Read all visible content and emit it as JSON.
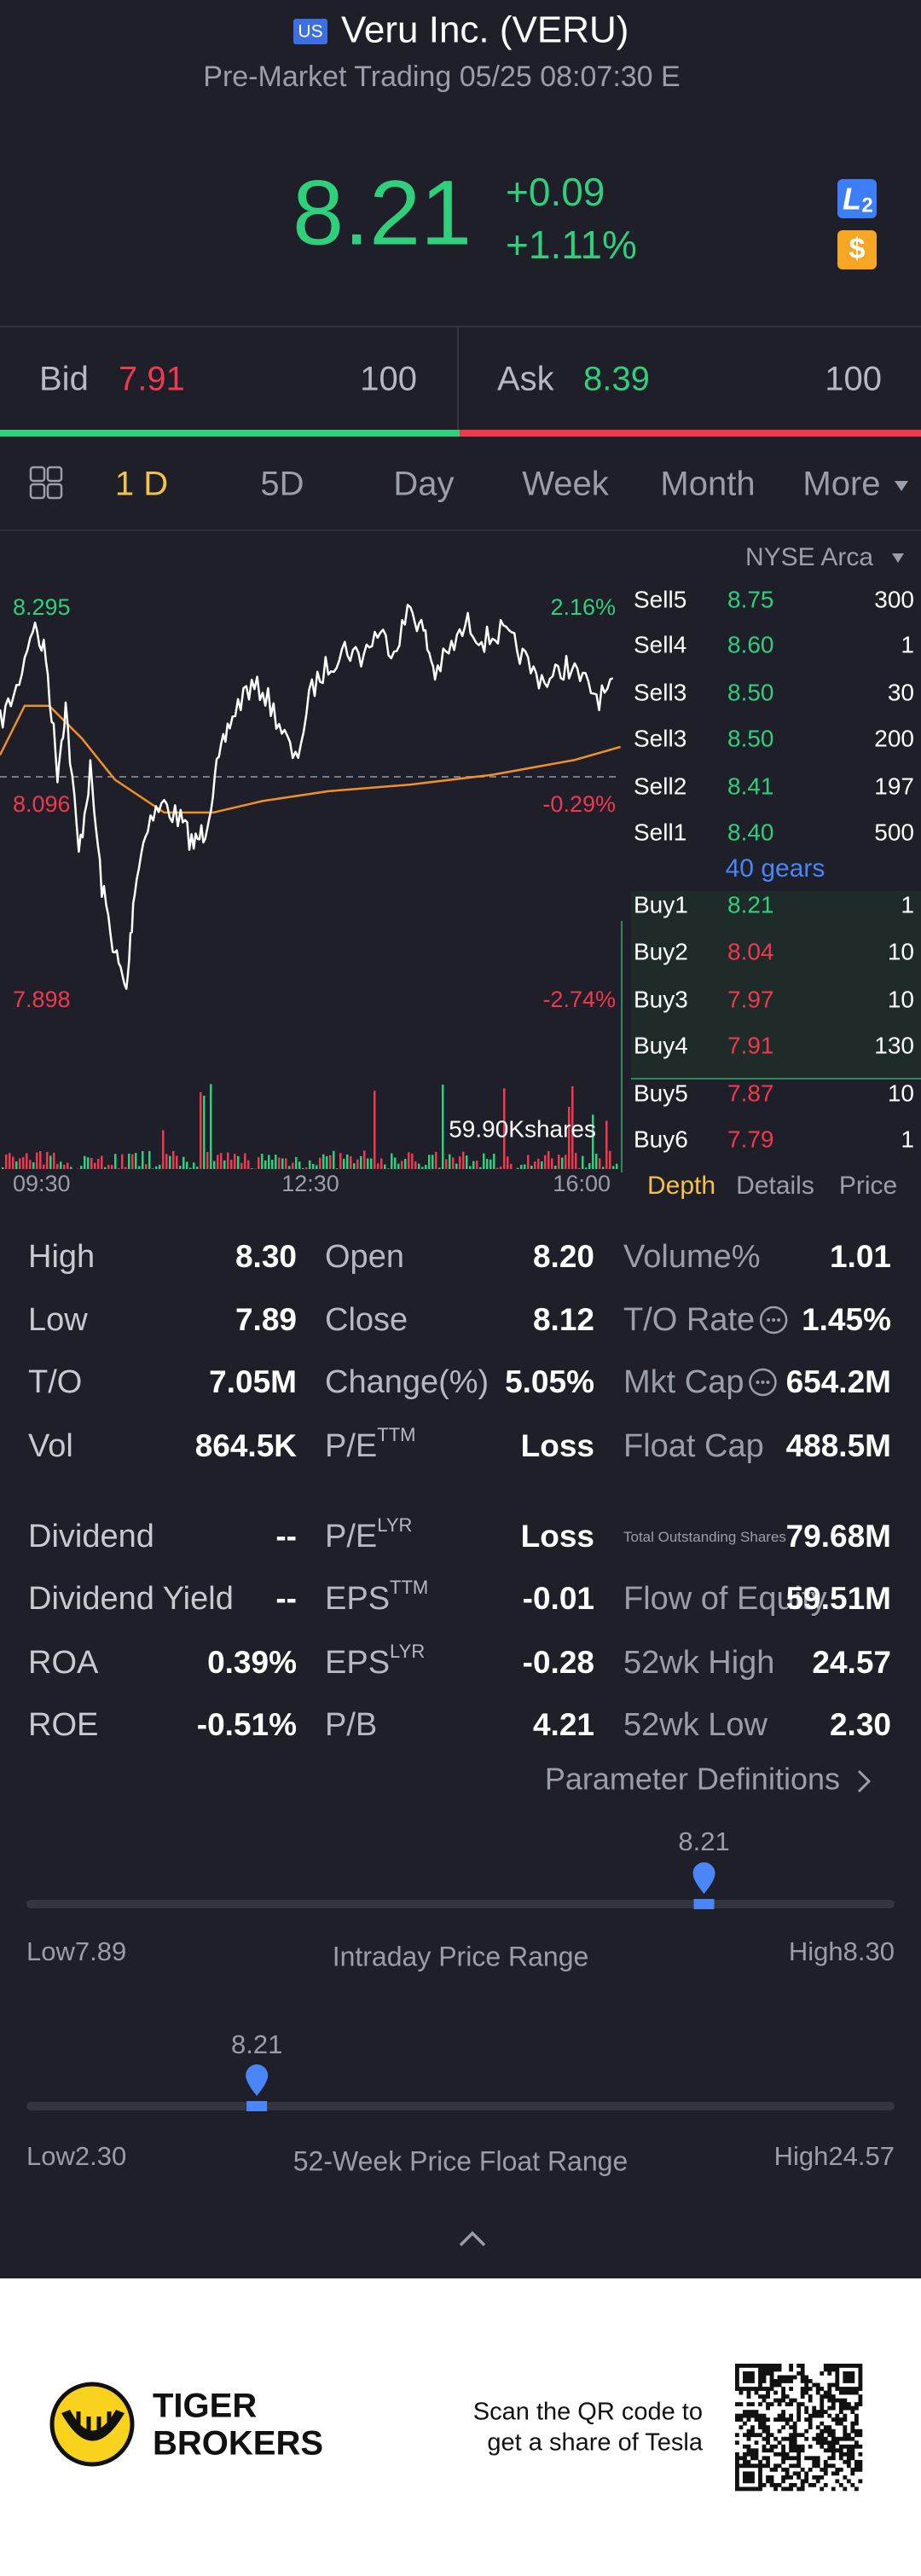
{
  "header": {
    "badge": "US",
    "title": "Veru Inc. (VERU)",
    "subtitle": "Pre-Market Trading 05/25 08:07:30 E"
  },
  "quote": {
    "price": "8.21",
    "change": "+0.09",
    "change_pct": "+1.11%",
    "level2_icon": {
      "letter": "L",
      "sub": "2"
    },
    "currency_icon": "$"
  },
  "bid_ask": {
    "bid": {
      "label": "Bid",
      "price": "7.91",
      "size": "100"
    },
    "ask": {
      "label": "Ask",
      "price": "8.39",
      "size": "100"
    }
  },
  "tabs": [
    "1 D",
    "5D",
    "Day",
    "Week",
    "Month",
    "More"
  ],
  "chart": {
    "left_labels": [
      "8.295",
      "8.096",
      "7.898"
    ],
    "right_labels": [
      "2.16%",
      "-0.29%",
      "-2.74%"
    ],
    "time_labels": [
      "09:30",
      "12:30",
      "16:00"
    ],
    "volume_label": "59.90Kshares"
  },
  "order_book": {
    "exchange": "NYSE Arca",
    "sells": [
      {
        "label": "Sell5",
        "price": "8.75",
        "size": "300"
      },
      {
        "label": "Sell4",
        "price": "8.60",
        "size": "1"
      },
      {
        "label": "Sell3",
        "price": "8.50",
        "size": "30"
      },
      {
        "label": "Sell3",
        "price": "8.50",
        "size": "200"
      },
      {
        "label": "Sell2",
        "price": "8.41",
        "size": "197"
      },
      {
        "label": "Sell1",
        "price": "8.40",
        "size": "500"
      }
    ],
    "gears": "40 gears",
    "buys": [
      {
        "label": "Buy1",
        "price": "8.21",
        "size": "1"
      },
      {
        "label": "Buy2",
        "price": "8.04",
        "size": "10"
      },
      {
        "label": "Buy3",
        "price": "7.97",
        "size": "10"
      },
      {
        "label": "Buy4",
        "price": "7.91",
        "size": "130"
      },
      {
        "label": "Buy5",
        "price": "7.87",
        "size": "10"
      },
      {
        "label": "Buy6",
        "price": "7.79",
        "size": "1"
      }
    ],
    "tabs": [
      "Depth",
      "Details",
      "Price"
    ]
  },
  "stats": {
    "rows": [
      [
        {
          "label": "High",
          "value": "8.30"
        },
        {
          "label": "Open",
          "value": "8.20"
        },
        {
          "label": "Volume%",
          "value": "1.01"
        }
      ],
      [
        {
          "label": "Low",
          "value": "7.89"
        },
        {
          "label": "Close",
          "value": "8.12"
        },
        {
          "label": "T/O Rate",
          "value": "1.45%"
        }
      ],
      [
        {
          "label": "T/O",
          "value": "7.05M"
        },
        {
          "label": "Change(%)",
          "value": "5.05%"
        },
        {
          "label": "Mkt Cap",
          "value": "654.2M"
        }
      ],
      [
        {
          "label": "Vol",
          "value": "864.5K"
        },
        {
          "label": "P/E",
          "sup": "TTM",
          "value": "Loss"
        },
        {
          "label": "Float Cap",
          "value": "488.5M"
        }
      ],
      [
        {
          "label": "Dividend",
          "value": "--"
        },
        {
          "label": "P/E",
          "sup": "LYR",
          "value": "Loss"
        },
        {
          "label": "Total Outstanding Shares",
          "value": "79.68M"
        }
      ],
      [
        {
          "label": "Dividend Yield",
          "value": "--"
        },
        {
          "label": "EPS",
          "sup": "TTM",
          "value": "-0.01"
        },
        {
          "label": "Flow of Equity",
          "value": "59.51M"
        }
      ],
      [
        {
          "label": "ROA",
          "value": "0.39%"
        },
        {
          "label": "EPS",
          "sup": "LYR",
          "value": "-0.28"
        },
        {
          "label": "52wk High",
          "value": "24.57"
        }
      ],
      [
        {
          "label": "ROE",
          "value": "-0.51%"
        },
        {
          "label": "P/B",
          "value": "4.21"
        },
        {
          "label": "52wk Low",
          "value": "2.30"
        }
      ]
    ]
  },
  "parameter_link": "Parameter Definitions",
  "ranges": [
    {
      "current": "8.21",
      "low_label": "Low",
      "low": "7.89",
      "title": "Intraday Price Range",
      "high_label": "High",
      "high": "8.30"
    },
    {
      "current": "8.21",
      "low_label": "Low",
      "low": "2.30",
      "title": "52-Week Price Float Range",
      "high_label": "High",
      "high": "24.57"
    }
  ],
  "footer": {
    "brand": [
      "TIGER",
      "BROKERS"
    ],
    "scan_text": [
      "Scan the QR code to",
      "get a share of Tesla"
    ]
  }
}
